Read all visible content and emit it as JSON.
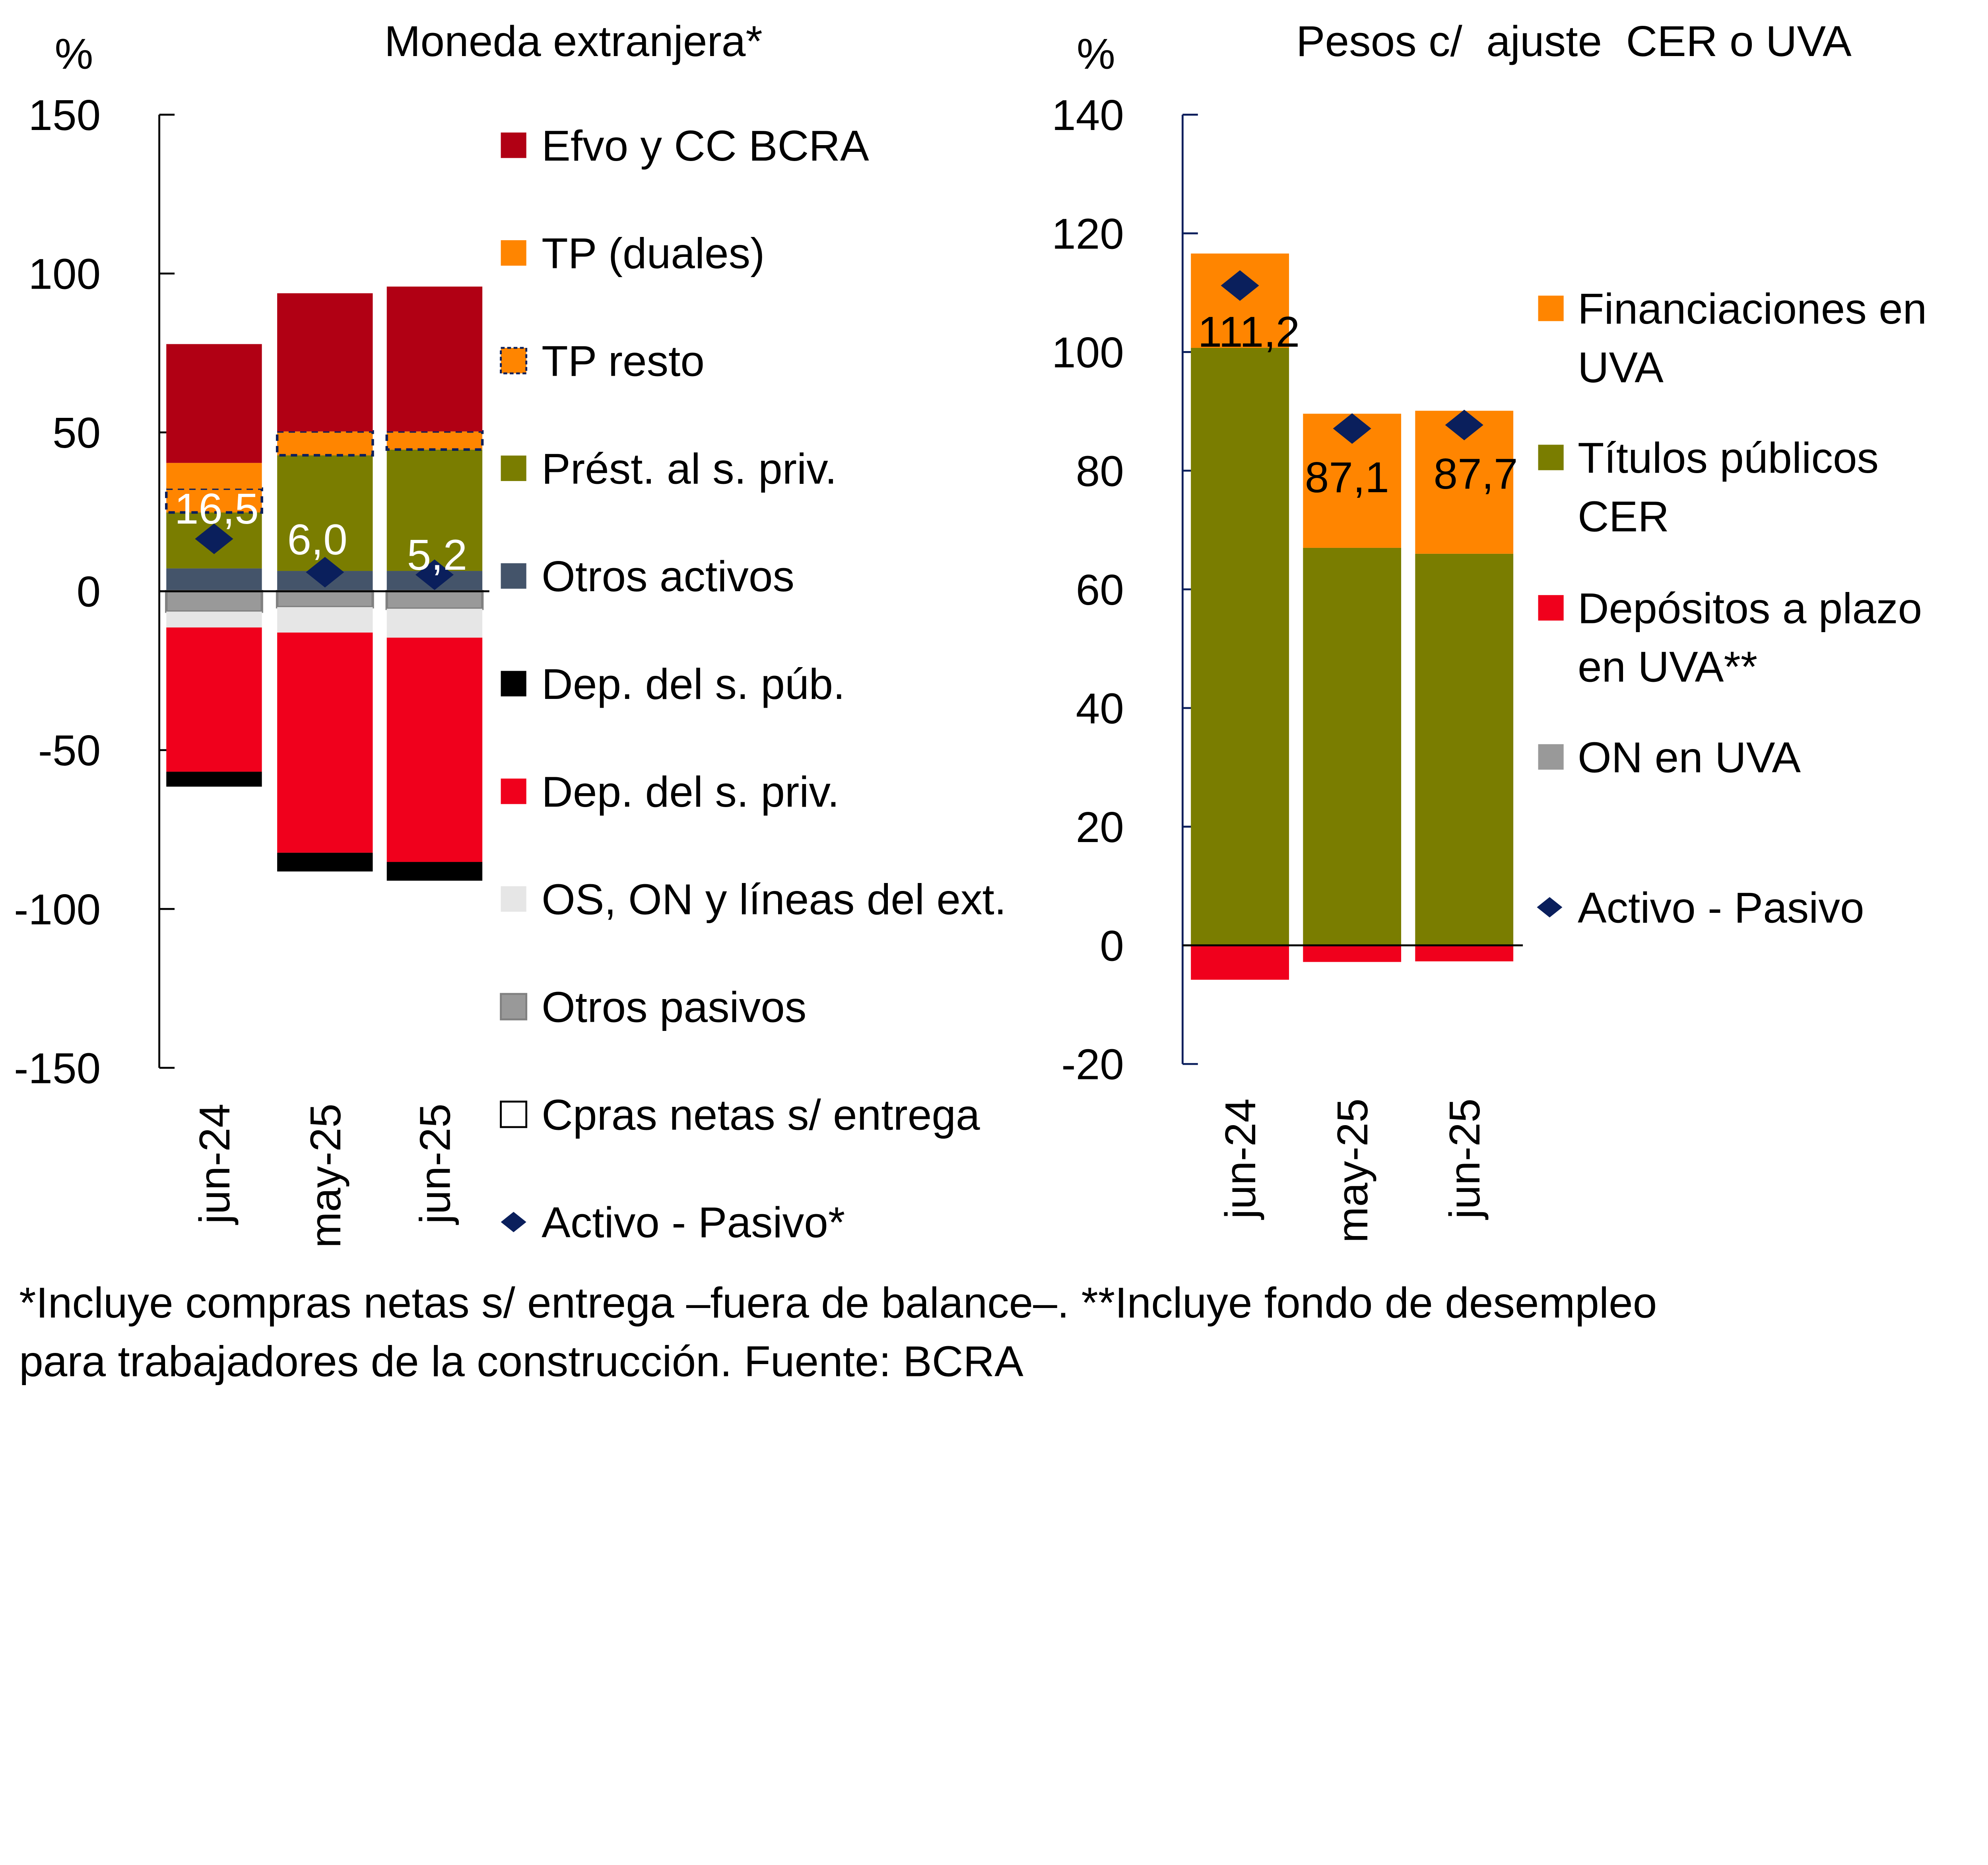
{
  "chart_data": [
    {
      "type": "bar",
      "stacked": true,
      "title": "Moneda extranjera*",
      "ylabel": "%",
      "ylim": [
        -150,
        150
      ],
      "yticks": [
        "150",
        "100",
        "50",
        "0",
        "-50",
        "-100",
        "-150"
      ],
      "categories": [
        "jun-24",
        "may-25",
        "jun-25"
      ],
      "series": [
        {
          "name": "Efvo y CC BCRA",
          "color": "#b10014",
          "values": [
            37.4,
            43.5,
            45.6
          ]
        },
        {
          "name": "TP (duales)",
          "color": "#ff8500",
          "values": [
            8.1,
            0,
            0
          ]
        },
        {
          "name": "TP resto",
          "color": "#ff8500",
          "dashed": true,
          "values": [
            7.5,
            7.5,
            5.7
          ]
        },
        {
          "name": "Prést. al s. priv.",
          "color": "#7a7d00",
          "values": [
            17.6,
            36.4,
            38.2
          ]
        },
        {
          "name": "Otros activos",
          "color": "#44546a",
          "values": [
            7.2,
            6.4,
            6.4
          ]
        },
        {
          "name": "Dep. del s. púb.",
          "color": "#000000",
          "values": [
            -4.7,
            -5.9,
            -5.9
          ]
        },
        {
          "name": "Dep. del s. priv.",
          "color": "#f0001c",
          "values": [
            -45.4,
            -69.3,
            -70.6
          ]
        },
        {
          "name": "OS, ON y líneas del ext.",
          "color": "#e6e6e6",
          "values": [
            -5.0,
            -8.0,
            -9.1
          ]
        },
        {
          "name": "Otros pasivos",
          "color": "#999999",
          "values": [
            -6.4,
            -5.0,
            -5.5
          ]
        },
        {
          "name": "Cpras netas s/ entrega",
          "color": "#ffffff",
          "values": [
            0,
            0,
            0
          ]
        }
      ],
      "stack_order_positive": [
        "Otros activos",
        "Prést. al s. priv.",
        "TP resto",
        "TP (duales)",
        "Efvo y CC BCRA"
      ],
      "stack_order_negative": [
        "Otros pasivos",
        "OS, ON y líneas del ext.",
        "Dep. del s. priv.",
        "Dep. del s. púb."
      ],
      "net": {
        "name": "Activo - Pasivo*",
        "color": "#0a1f5c",
        "values": [
          16.5,
          6.0,
          5.2
        ],
        "labels": [
          "16,5",
          "6,0",
          "5,2"
        ]
      },
      "legend_order": [
        "Efvo y CC BCRA",
        "TP (duales)",
        "TP resto",
        "Prést. al s. priv.",
        "Otros activos",
        "Dep. del s. púb.",
        "Dep. del s. priv.",
        "OS, ON y líneas del ext.",
        "Otros pasivos",
        "Cpras netas s/ entrega",
        "Activo - Pasivo*"
      ],
      "legend_placement": "right",
      "grid": false
    },
    {
      "type": "bar",
      "stacked": true,
      "title": "Pesos c/  ajuste  CER o UVA",
      "ylabel": "%",
      "ylim": [
        -20,
        140
      ],
      "yticks": [
        "140",
        "120",
        "100",
        "80",
        "60",
        "40",
        "20",
        "0",
        "-20"
      ],
      "categories": [
        "jun-24",
        "may-25",
        "jun-25"
      ],
      "series": [
        {
          "name": "Financiaciones en UVA",
          "legend_lines": [
            "Financiaciones en",
            "UVA"
          ],
          "color": "#ff8500",
          "values": [
            15.9,
            22.6,
            24.1
          ]
        },
        {
          "name": "Títulos públicos CER",
          "legend_lines": [
            "Títulos públicos",
            "CER"
          ],
          "color": "#7a7d00",
          "values": [
            100.7,
            67.0,
            66.0
          ]
        },
        {
          "name": "Depósitos a plazo en UVA**",
          "legend_lines": [
            "Depósitos a plazo",
            "en UVA**"
          ],
          "color": "#f0001c",
          "values": [
            -5.8,
            -2.8,
            -2.7
          ]
        },
        {
          "name": "ON en UVA",
          "legend_lines": [
            "ON en UVA"
          ],
          "color": "#999999",
          "values": [
            0,
            0,
            0
          ]
        }
      ],
      "stack_order_positive": [
        "Títulos públicos CER",
        "Financiaciones en UVA"
      ],
      "stack_order_negative": [
        "Depósitos a plazo en UVA**",
        "ON en UVA"
      ],
      "net": {
        "name": "Activo - Pasivo",
        "color": "#0a1f5c",
        "values": [
          111.2,
          87.1,
          87.7
        ],
        "labels": [
          "111,2",
          "87,1",
          "87,7"
        ]
      },
      "legend_placement": "right",
      "grid": false
    }
  ],
  "footnote": {
    "line1": "*Incluye compras netas s/ entrega –fuera de balance–. **Incluye fondo de desempleo",
    "line2": "para trabajadores de la construcción. Fuente: BCRA"
  }
}
